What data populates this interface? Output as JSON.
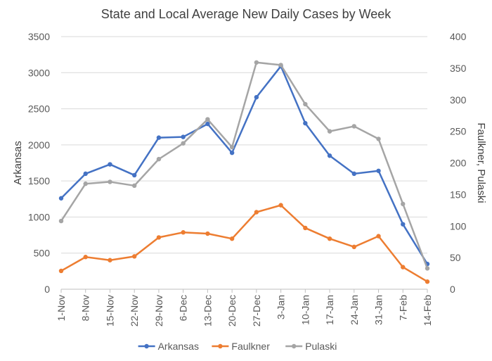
{
  "chart_data": {
    "type": "line",
    "title": "State and Local Average New Daily Cases by Week",
    "ylabel_left": "Arkansas",
    "ylabel_right": "Faulkner, Pulaski",
    "categories": [
      "1-Nov",
      "8-Nov",
      "15-Nov",
      "22-Nov",
      "29-Nov",
      "6-Dec",
      "13-Dec",
      "20-Dec",
      "27-Dec",
      "3-Jan",
      "10-Jan",
      "17-Jan",
      "24-Jan",
      "31-Jan",
      "7-Feb",
      "14-Feb"
    ],
    "ylim_left": [
      0,
      3500
    ],
    "yticks_left": [
      "0",
      "500",
      "1000",
      "1500",
      "2000",
      "2500",
      "3000",
      "3500"
    ],
    "ylim_right": [
      0,
      400
    ],
    "yticks_right": [
      "0",
      "50",
      "100",
      "150",
      "200",
      "250",
      "300",
      "350",
      "400"
    ],
    "grid": true,
    "legend_position": "bottom",
    "series": [
      {
        "name": "Arkansas",
        "axis": "left",
        "color": "#4472C4",
        "values": [
          1260,
          1600,
          1730,
          1580,
          2100,
          2110,
          2290,
          1890,
          2660,
          3090,
          2300,
          1850,
          1600,
          1640,
          900,
          350
        ]
      },
      {
        "name": "Faulkner",
        "axis": "right",
        "color": "#ED7D31",
        "values": [
          29,
          51,
          46,
          52,
          82,
          90,
          88,
          80,
          122,
          133,
          97,
          80,
          67,
          84,
          35,
          12
        ]
      },
      {
        "name": "Pulaski",
        "axis": "right",
        "color": "#A5A5A5",
        "values": [
          108,
          167,
          170,
          164,
          206,
          231,
          269,
          225,
          359,
          355,
          293,
          250,
          258,
          238,
          135,
          33
        ]
      }
    ]
  }
}
